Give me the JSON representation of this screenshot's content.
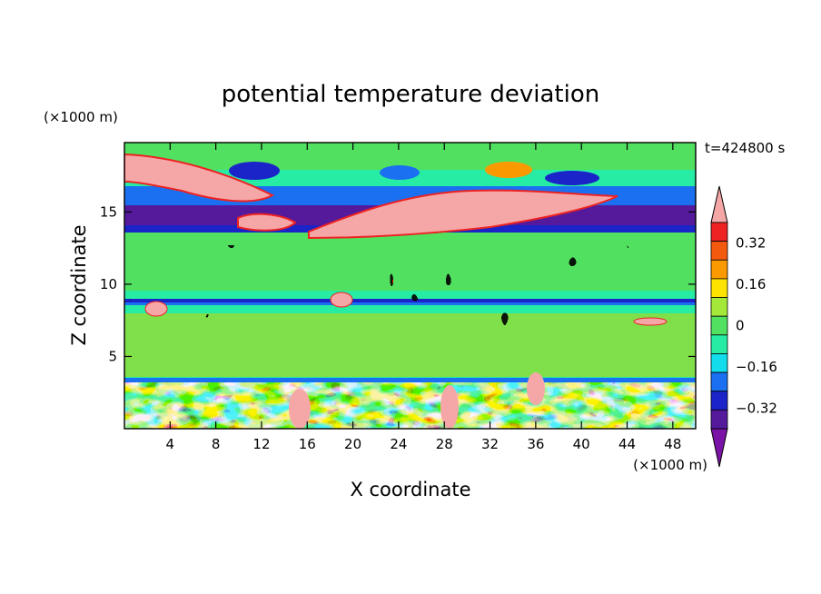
{
  "chart_data": {
    "type": "heatmap",
    "title": "potential temperature deviation",
    "xlabel": "X coordinate",
    "ylabel": "Z coordinate",
    "x_unit": "(×1000 m)",
    "y_unit": "(×1000 m)",
    "time_label": "t=424800 s",
    "xlim": [
      0,
      50
    ],
    "ylim": [
      0,
      19.8
    ],
    "x_ticks": [
      4,
      8,
      12,
      16,
      20,
      24,
      28,
      32,
      36,
      40,
      44,
      48
    ],
    "y_ticks": [
      5,
      10,
      15
    ],
    "colorbar": {
      "levels": [
        -0.48,
        -0.4,
        -0.32,
        -0.24,
        -0.16,
        -0.08,
        0,
        0.08,
        0.16,
        0.24,
        0.32,
        0.4,
        0.48
      ],
      "labels": [
        "0.32",
        "0.16",
        "0",
        "-0.16",
        "-0.32"
      ],
      "label_values": [
        0.32,
        0.16,
        0,
        -0.16,
        -0.32
      ],
      "colors_top_to_bottom": [
        "#f5a7a7",
        "#ee2222",
        "#f45a0f",
        "#fa9a00",
        "#fee300",
        "#a4e83a",
        "#52e060",
        "#27eca4",
        "#13ddec",
        "#1a70f0",
        "#1a24c8",
        "#551a9c",
        "#7a14a6"
      ]
    },
    "features": [
      {
        "kind": "band",
        "z": [
          13.5,
          17.5
        ],
        "value": "negative, strongest (~-0.4)"
      },
      {
        "kind": "band",
        "z": [
          9,
          12
        ],
        "value": "near zero (0 to 0.08)"
      },
      {
        "kind": "layer",
        "z": [
          8.5,
          9
        ],
        "value": "negative (~-0.16 to -0.32)"
      },
      {
        "kind": "layer",
        "z": [
          3.2,
          3.6
        ],
        "value": "negative (~-0.16)"
      },
      {
        "kind": "turbulent-region",
        "z": [
          0,
          3.4
        ],
        "value": "mixed -0.48 to 0.48"
      },
      {
        "kind": "plume",
        "x": [
          10,
          40
        ],
        "z": [
          14,
          17
        ],
        "value": "positive (>0.4)"
      },
      {
        "kind": "plume",
        "x": [
          0,
          10
        ],
        "z": [
          16.5,
          19
        ],
        "value": "positive (>0.4)"
      }
    ]
  }
}
